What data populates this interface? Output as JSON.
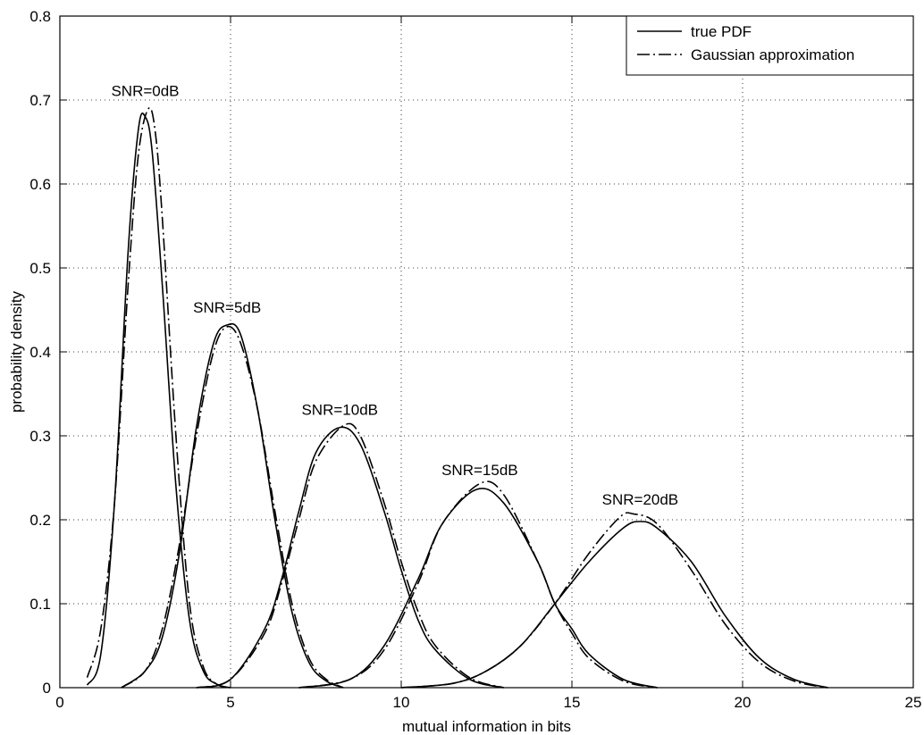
{
  "chart_data": {
    "type": "line",
    "title": "",
    "xlabel": "mutual information in bits",
    "ylabel": "probability density",
    "xlim": [
      0,
      25
    ],
    "ylim": [
      0,
      0.8
    ],
    "xticks": [
      0,
      5,
      10,
      15,
      20,
      25
    ],
    "xtick_labels": [
      "0",
      "5",
      "10",
      "15",
      "20",
      "25"
    ],
    "yticks": [
      0,
      0.1,
      0.2,
      0.3,
      0.4,
      0.5,
      0.6,
      0.7,
      0.8
    ],
    "ytick_labels": [
      "0",
      "0.1",
      "0.2",
      "0.3",
      "0.4",
      "0.5",
      "0.6",
      "0.7",
      "0.8"
    ],
    "grid": true,
    "legend_position": "top-right",
    "legend": [
      {
        "label": "true PDF",
        "style": "solid"
      },
      {
        "label": "Gaussian approximation",
        "style": "dashdot"
      }
    ],
    "annotations": [
      {
        "text": "SNR=0dB",
        "x": 2.5,
        "y": 0.705
      },
      {
        "text": "SNR=5dB",
        "x": 4.9,
        "y": 0.447
      },
      {
        "text": "SNR=10dB",
        "x": 8.2,
        "y": 0.325
      },
      {
        "text": "SNR=15dB",
        "x": 12.3,
        "y": 0.253
      },
      {
        "text": "SNR=20dB",
        "x": 17.0,
        "y": 0.218
      }
    ],
    "series": [
      {
        "group": "SNR=0dB",
        "style": "solid",
        "x": [
          0.8,
          1.2,
          1.6,
          2.0,
          2.3,
          2.5,
          2.7,
          3.0,
          3.4,
          3.8,
          4.2,
          4.6,
          5.0
        ],
        "y": [
          0.003,
          0.04,
          0.22,
          0.52,
          0.665,
          0.68,
          0.64,
          0.48,
          0.24,
          0.08,
          0.02,
          0.004,
          0.0
        ]
      },
      {
        "group": "SNR=0dB",
        "style": "dashdot",
        "x": [
          0.8,
          1.2,
          1.6,
          2.0,
          2.3,
          2.6,
          2.8,
          3.0,
          3.4,
          3.8,
          4.2,
          4.6,
          5.0
        ],
        "y": [
          0.012,
          0.07,
          0.22,
          0.48,
          0.635,
          0.69,
          0.66,
          0.56,
          0.3,
          0.1,
          0.025,
          0.004,
          0.0
        ]
      },
      {
        "group": "SNR=5dB",
        "style": "solid",
        "x": [
          1.8,
          2.5,
          3.0,
          3.5,
          4.0,
          4.5,
          4.9,
          5.3,
          5.8,
          6.3,
          6.8,
          7.3,
          7.8,
          8.3
        ],
        "y": [
          0.0,
          0.02,
          0.06,
          0.16,
          0.31,
          0.41,
          0.432,
          0.42,
          0.33,
          0.2,
          0.09,
          0.03,
          0.008,
          0.0
        ]
      },
      {
        "group": "SNR=5dB",
        "style": "dashdot",
        "x": [
          1.8,
          2.5,
          3.0,
          3.5,
          4.0,
          4.5,
          4.9,
          5.3,
          5.8,
          6.3,
          6.8,
          7.3,
          7.8,
          8.3
        ],
        "y": [
          0.0,
          0.02,
          0.07,
          0.17,
          0.3,
          0.4,
          0.43,
          0.41,
          0.33,
          0.21,
          0.1,
          0.035,
          0.01,
          0.0
        ]
      },
      {
        "group": "SNR=10dB",
        "style": "solid",
        "x": [
          4.0,
          5.0,
          6.0,
          6.5,
          7.0,
          7.5,
          8.2,
          8.8,
          9.5,
          10.0,
          10.5,
          11.0,
          12.0,
          13.0
        ],
        "y": [
          0.0,
          0.01,
          0.07,
          0.13,
          0.21,
          0.28,
          0.31,
          0.29,
          0.21,
          0.14,
          0.08,
          0.045,
          0.01,
          0.0
        ]
      },
      {
        "group": "SNR=10dB",
        "style": "dashdot",
        "x": [
          4.0,
          5.0,
          6.0,
          6.5,
          7.0,
          7.5,
          8.3,
          8.8,
          9.5,
          10.0,
          10.5,
          11.0,
          12.0,
          13.0
        ],
        "y": [
          0.0,
          0.01,
          0.065,
          0.125,
          0.2,
          0.27,
          0.312,
          0.3,
          0.22,
          0.15,
          0.09,
          0.05,
          0.012,
          0.0
        ]
      },
      {
        "group": "SNR=15dB",
        "style": "solid",
        "x": [
          7.0,
          8.5,
          9.5,
          10.5,
          11.2,
          12.2,
          13.0,
          14.0,
          14.5,
          15.0,
          15.5,
          16.5,
          17.5
        ],
        "y": [
          0.0,
          0.01,
          0.05,
          0.13,
          0.195,
          0.236,
          0.22,
          0.15,
          0.1,
          0.07,
          0.04,
          0.01,
          0.0
        ]
      },
      {
        "group": "SNR=15dB",
        "style": "dashdot",
        "x": [
          7.0,
          8.5,
          9.5,
          10.5,
          11.2,
          12.3,
          13.0,
          14.0,
          14.5,
          15.0,
          15.5,
          16.5,
          17.5
        ],
        "y": [
          0.0,
          0.01,
          0.045,
          0.125,
          0.195,
          0.243,
          0.23,
          0.15,
          0.1,
          0.065,
          0.035,
          0.008,
          0.0
        ]
      },
      {
        "group": "SNR=20dB",
        "style": "solid",
        "x": [
          10.0,
          11.5,
          12.5,
          13.5,
          14.5,
          15.5,
          16.5,
          17.0,
          17.5,
          18.5,
          19.5,
          20.5,
          21.5,
          22.5
        ],
        "y": [
          0.0,
          0.005,
          0.02,
          0.05,
          0.1,
          0.15,
          0.19,
          0.198,
          0.19,
          0.15,
          0.085,
          0.035,
          0.01,
          0.0
        ]
      },
      {
        "group": "SNR=20dB",
        "style": "dashdot",
        "x": [
          10.0,
          11.5,
          12.5,
          13.5,
          14.5,
          15.5,
          16.4,
          16.8,
          17.5,
          18.5,
          19.5,
          20.5,
          21.5,
          22.5
        ],
        "y": [
          0.0,
          0.005,
          0.02,
          0.05,
          0.1,
          0.16,
          0.203,
          0.207,
          0.195,
          0.14,
          0.075,
          0.03,
          0.008,
          0.0
        ]
      }
    ]
  }
}
